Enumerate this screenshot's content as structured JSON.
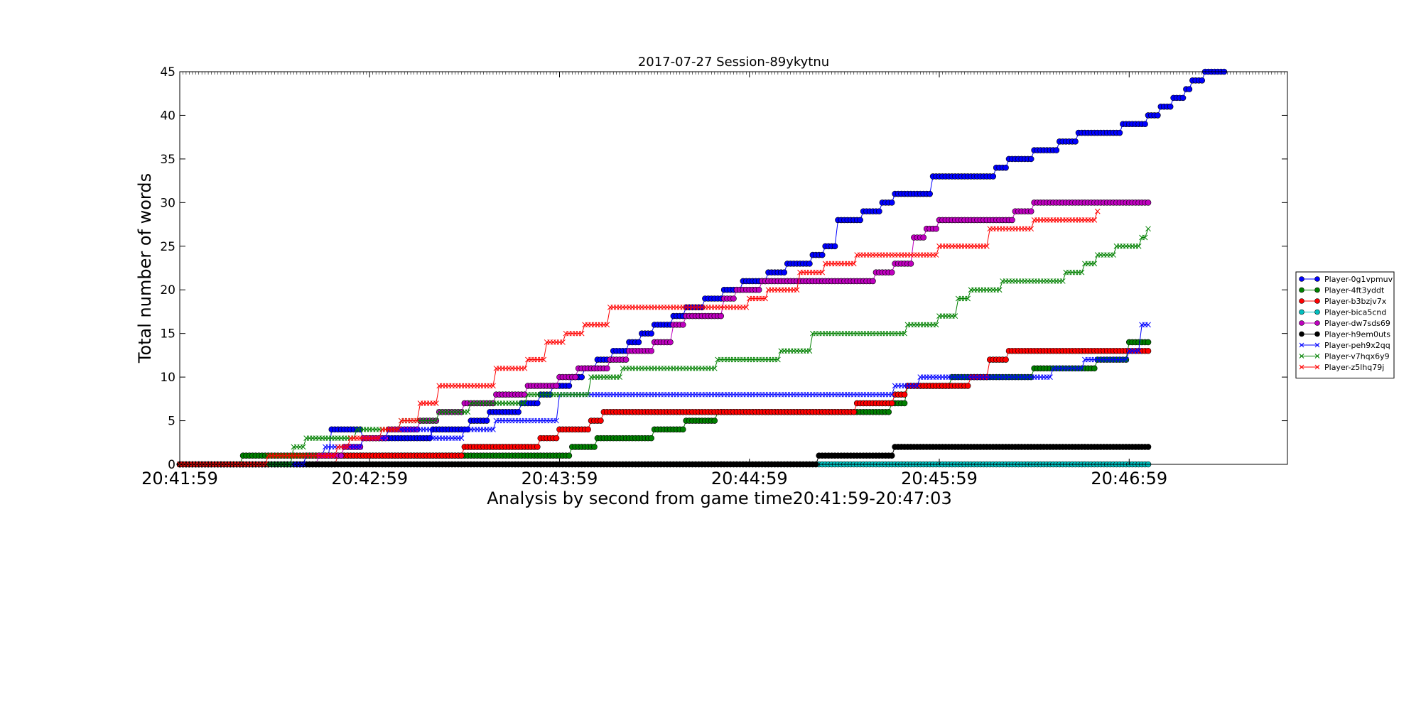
{
  "chart_data": {
    "type": "line",
    "title": "2017-07-27 Session-89ykytnu",
    "xlabel": "Analysis by second from game time20:41:59-20:47:03",
    "ylabel": "Total number of words",
    "xlim": [
      0,
      350
    ],
    "ylim": [
      0,
      45
    ],
    "xticks": [
      {
        "value": 0,
        "label": "20:41:59"
      },
      {
        "value": 60,
        "label": "20:42:59"
      },
      {
        "value": 120,
        "label": "20:43:59"
      },
      {
        "value": 180,
        "label": "20:44:59"
      },
      {
        "value": 240,
        "label": "20:45:59"
      },
      {
        "value": 300,
        "label": "20:46:59"
      }
    ],
    "yticks": [
      0,
      5,
      10,
      15,
      20,
      25,
      30,
      35,
      40,
      45
    ],
    "legend_position": "right-outside",
    "series": [
      {
        "name": "Player-0g1vpmuv",
        "color": "#0000ff",
        "marker": "circle",
        "x": [
          0,
          40,
          48,
          58,
          80,
          92,
          98,
          108,
          114,
          118,
          124,
          128,
          132,
          137,
          142,
          146,
          150,
          156,
          160,
          166,
          172,
          178,
          186,
          192,
          200,
          204,
          208,
          216,
          222,
          226,
          238,
          258,
          262,
          270,
          278,
          284,
          298,
          306,
          310,
          314,
          318,
          320,
          322,
          324,
          326,
          328,
          330
        ],
        "y": [
          0,
          1,
          4,
          3,
          4,
          5,
          6,
          7,
          8,
          9,
          10,
          11,
          12,
          13,
          14,
          15,
          16,
          17,
          18,
          19,
          20,
          21,
          22,
          23,
          24,
          25,
          28,
          29,
          30,
          31,
          33,
          34,
          35,
          36,
          37,
          38,
          39,
          40,
          41,
          42,
          43,
          44,
          44,
          45,
          45,
          45,
          45
        ]
      },
      {
        "name": "Player-4ft3yddt",
        "color": "#008000",
        "marker": "circle",
        "x": [
          0,
          20,
          26,
          50,
          56,
          60,
          80,
          94,
          120,
          124,
          132,
          140,
          150,
          160,
          170,
          178,
          184,
          192,
          196,
          204,
          208,
          214,
          225,
          230,
          240,
          244,
          250,
          260,
          270,
          276,
          280,
          290,
          296,
          300,
          306
        ],
        "y": [
          0,
          1,
          1,
          1,
          1,
          1,
          1,
          1,
          1,
          2,
          3,
          3,
          4,
          5,
          6,
          6,
          6,
          6,
          6,
          6,
          6,
          6,
          7,
          9,
          9,
          10,
          10,
          10,
          11,
          11,
          11,
          12,
          12,
          14,
          14
        ]
      },
      {
        "name": "Player-b3bzjv7x",
        "color": "#ff0000",
        "marker": "circle",
        "x": [
          0,
          22,
          46,
          50,
          56,
          84,
          90,
          110,
          114,
          120,
          126,
          130,
          134,
          144,
          160,
          180,
          188,
          196,
          204,
          214,
          220,
          226,
          230,
          240,
          250,
          256,
          262,
          270,
          278,
          290,
          300,
          306
        ],
        "y": [
          0,
          0,
          0,
          1,
          1,
          1,
          2,
          2,
          3,
          4,
          4,
          5,
          6,
          6,
          6,
          6,
          6,
          6,
          6,
          7,
          7,
          8,
          9,
          9,
          10,
          12,
          13,
          13,
          13,
          13,
          13,
          13
        ]
      },
      {
        "name": "Player-bica5cnd",
        "color": "#00bfbf",
        "marker": "circle",
        "x": [
          0,
          100,
          200,
          250,
          306
        ],
        "y": [
          0,
          0,
          0,
          0,
          0
        ]
      },
      {
        "name": "Player-dw7sds69",
        "color": "#bf00bf",
        "marker": "circle",
        "x": [
          0,
          44,
          52,
          58,
          66,
          76,
          82,
          90,
          100,
          110,
          120,
          126,
          136,
          142,
          150,
          156,
          160,
          172,
          176,
          184,
          200,
          212,
          220,
          226,
          232,
          236,
          240,
          248,
          254,
          264,
          270,
          280,
          290,
          296,
          306
        ],
        "y": [
          0,
          1,
          2,
          3,
          4,
          5,
          6,
          7,
          8,
          9,
          10,
          11,
          12,
          13,
          14,
          16,
          17,
          19,
          20,
          21,
          21,
          21,
          22,
          23,
          26,
          27,
          28,
          28,
          28,
          29,
          30,
          30,
          30,
          30,
          30
        ]
      },
      {
        "name": "Player-h9em0uts",
        "color": "#000000",
        "marker": "circle",
        "x": [
          0,
          100,
          200,
          202,
          220,
          226,
          240,
          260,
          280,
          300,
          306
        ],
        "y": [
          0,
          0,
          0,
          1,
          1,
          2,
          2,
          2,
          2,
          2,
          2
        ]
      },
      {
        "name": "Player-peh9x2qq",
        "color": "#0000ff",
        "marker": "x",
        "x": [
          0,
          40,
          46,
          52,
          58,
          66,
          80,
          90,
          100,
          120,
          160,
          200,
          216,
          226,
          234,
          250,
          270,
          276,
          286,
          294,
          300,
          304,
          306
        ],
        "y": [
          0,
          1,
          2,
          2,
          3,
          4,
          3,
          4,
          5,
          8,
          8,
          8,
          8,
          9,
          10,
          10,
          10,
          11,
          12,
          12,
          13,
          16,
          16
        ]
      },
      {
        "name": "Player-v7hqx6y9",
        "color": "#008000",
        "marker": "x",
        "x": [
          0,
          30,
          36,
          40,
          46,
          56,
          70,
          82,
          92,
          110,
          120,
          130,
          140,
          160,
          170,
          180,
          190,
          200,
          220,
          230,
          240,
          246,
          250,
          260,
          270,
          280,
          286,
          290,
          296,
          300,
          304,
          306
        ],
        "y": [
          0,
          0,
          2,
          3,
          3,
          4,
          5,
          6,
          7,
          8,
          8,
          10,
          11,
          11,
          12,
          12,
          13,
          15,
          15,
          16,
          17,
          19,
          20,
          21,
          21,
          22,
          23,
          24,
          25,
          25,
          26,
          27
        ]
      },
      {
        "name": "Player-z5lhq79j",
        "color": "#ff0000",
        "marker": "x",
        "x": [
          0,
          20,
          28,
          34,
          40,
          50,
          54,
          64,
          70,
          76,
          82,
          90,
          100,
          110,
          116,
          122,
          128,
          136,
          144,
          156,
          170,
          180,
          186,
          196,
          204,
          214,
          218,
          230,
          240,
          252,
          256,
          262,
          270,
          280,
          290
        ],
        "y": [
          0,
          0,
          1,
          1,
          1,
          2,
          3,
          4,
          5,
          7,
          9,
          9,
          11,
          12,
          14,
          15,
          16,
          18,
          18,
          18,
          18,
          19,
          20,
          22,
          23,
          24,
          24,
          24,
          25,
          25,
          27,
          27,
          28,
          28,
          29
        ]
      }
    ]
  }
}
